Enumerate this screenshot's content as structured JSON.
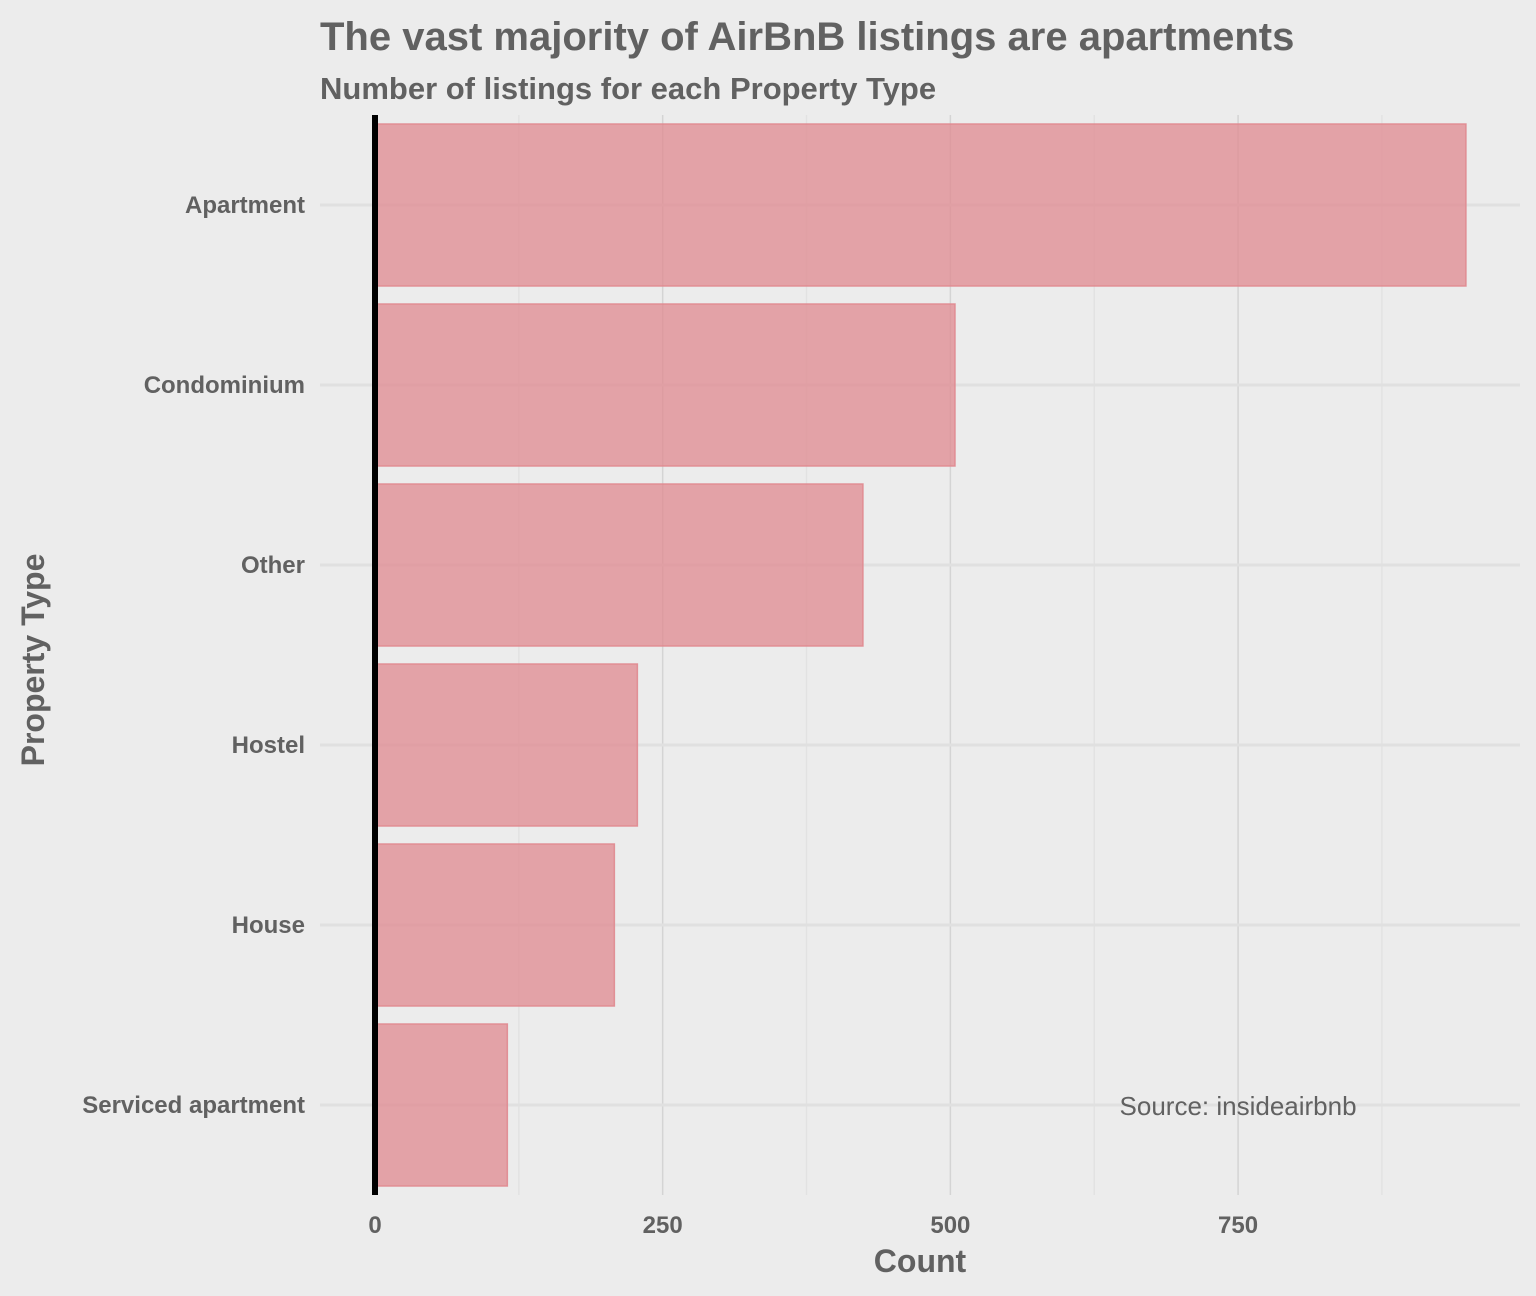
{
  "chart_data": {
    "type": "bar",
    "orientation": "horizontal",
    "title": "The vast majority of AirBnB listings are apartments",
    "subtitle": "Number of listings for each Property Type",
    "xlabel": "Count",
    "ylabel": "Property Type",
    "categories": [
      "Apartment",
      "Condominium",
      "Other",
      "Hostel",
      "House",
      "Serviced apartment"
    ],
    "values": [
      948,
      504,
      424,
      228,
      208,
      115
    ],
    "xlim": [
      0,
      995
    ],
    "xticks": [
      0,
      250,
      500,
      750
    ],
    "grid": true,
    "bar_color": "#e08a90",
    "annotation": {
      "text": "Source: insideairbnb",
      "x": 750,
      "category": "Serviced apartment"
    }
  }
}
